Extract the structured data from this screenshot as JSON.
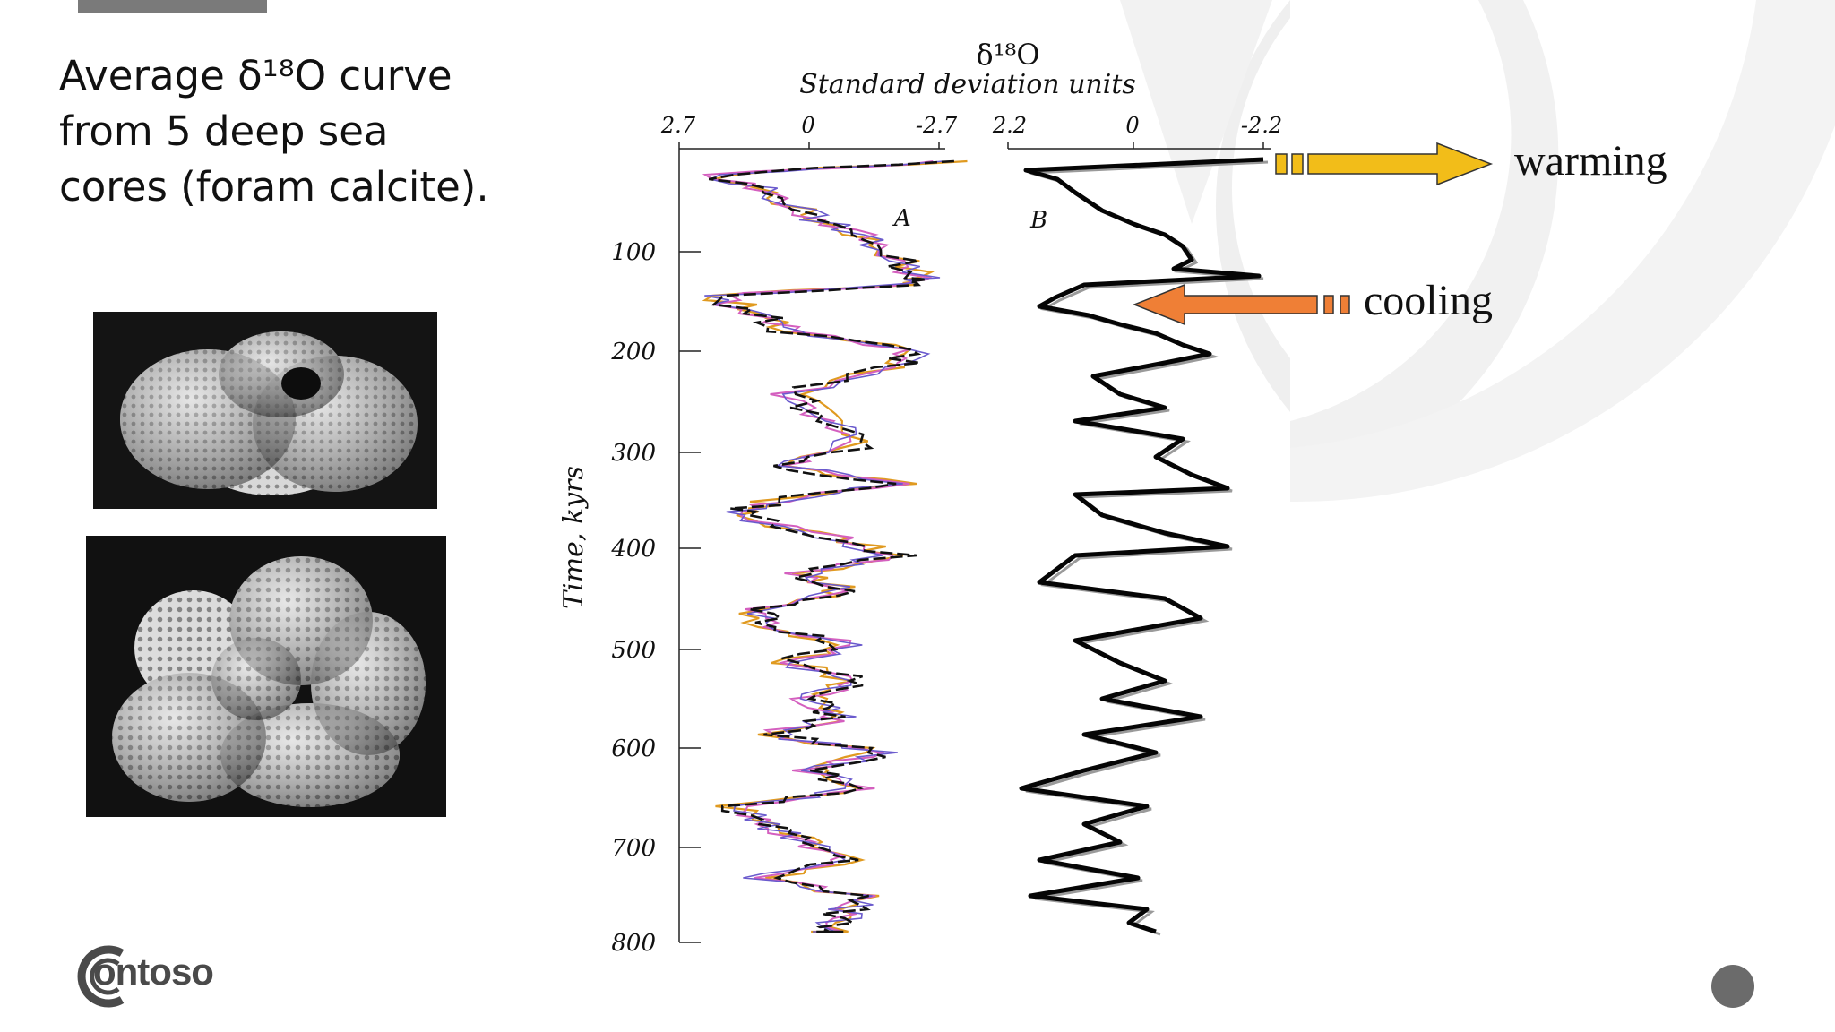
{
  "slide": {
    "title_line1": "Average δ¹⁸O curve",
    "title_line2": "from 5 deep sea",
    "title_line3": "cores (foram calcite)."
  },
  "figure": {
    "top_label": "δ¹⁸O",
    "axis_title": "Standard deviation units",
    "panel_a": {
      "label": "A",
      "ticks": [
        "2.7",
        "0",
        "-2.7"
      ]
    },
    "panel_b": {
      "label": "B",
      "ticks": [
        "2.2",
        "0",
        "-2.2"
      ]
    },
    "y_axis_label": "Time, kyrs",
    "y_ticks": [
      "100",
      "200",
      "300",
      "400",
      "500",
      "600",
      "700",
      "800"
    ]
  },
  "annotations": {
    "warming": "warming",
    "cooling": "cooling",
    "warming_color": "#f2bd19",
    "cooling_color": "#ef7f36"
  },
  "brand": {
    "logo_text": "ontoso",
    "logo_icon": "contoso-c-logo-icon"
  }
}
